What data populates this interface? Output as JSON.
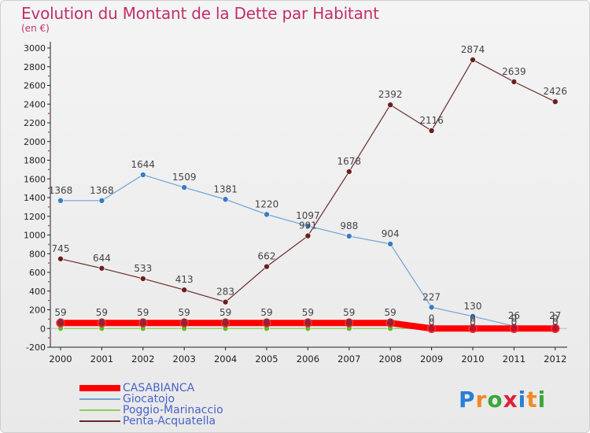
{
  "header": {
    "title": "Evolution du Montant de la Dette par Habitant",
    "subtitle": "(en €)"
  },
  "logo": {
    "text": "Proxiti",
    "letters": [
      "P",
      "r",
      "o",
      "x",
      "i",
      "t",
      "i"
    ],
    "colors": [
      "#2a7fd4",
      "#f08a24",
      "#3aa63a",
      "#e0203a",
      "#2a7fd4",
      "#f08a24",
      "#3aa63a"
    ]
  },
  "chart_data": {
    "type": "line",
    "title": "Evolution du Montant de la Dette par Habitant",
    "subtitle": "(en €)",
    "x": [
      "2000",
      "2001",
      "2002",
      "2003",
      "2004",
      "2005",
      "2006",
      "2007",
      "2008",
      "2009",
      "2010",
      "2011",
      "2012"
    ],
    "ylim": [
      -200,
      3000
    ],
    "yticks": [
      -200,
      0,
      200,
      400,
      600,
      800,
      1000,
      1200,
      1400,
      1600,
      1800,
      2000,
      2200,
      2400,
      2600,
      2800,
      3000
    ],
    "grid": false,
    "legend": "bottom-left",
    "series": [
      {
        "name": "CASABIANCA",
        "color": "#ff0000",
        "marker": "#c0102a",
        "values": [
          59,
          59,
          59,
          59,
          59,
          59,
          59,
          59,
          59,
          0,
          0,
          0,
          0
        ],
        "labels": [
          "59",
          "59",
          "59",
          "59",
          "59",
          "59",
          "59",
          "59",
          "59",
          "0",
          "0",
          "0",
          "0"
        ]
      },
      {
        "name": "Giocatojo",
        "color": "#6fa3d6",
        "marker": "#3a7cc2",
        "values": [
          1368,
          1368,
          1644,
          1509,
          1381,
          1220,
          1097,
          988,
          904,
          227,
          130,
          26,
          27
        ],
        "labels": [
          "1368",
          "1368",
          "1644",
          "1509",
          "1381",
          "1220",
          "1097",
          "988",
          "904",
          "227",
          "130",
          "26",
          "27"
        ]
      },
      {
        "name": "Poggio-Marinaccio",
        "color": "#88d060",
        "marker": "#5cbf2a",
        "values": [
          0,
          0,
          0,
          0,
          0,
          0,
          0,
          0,
          0,
          0,
          0,
          0,
          0
        ],
        "labels": [
          "0",
          "0",
          "0",
          "0",
          "0",
          "0",
          "0",
          "0",
          "0",
          "0",
          "0",
          "0",
          "0"
        ]
      },
      {
        "name": "Penta-Acquatella",
        "color": "#6b2a2a",
        "marker": "#6b1f1f",
        "values": [
          745,
          644,
          533,
          413,
          283,
          662,
          991,
          1678,
          2392,
          2116,
          2874,
          2639,
          2426
        ],
        "labels": [
          "745",
          "644",
          "533",
          "413",
          "283",
          "662",
          "991",
          "1678",
          "2392",
          "2116",
          "2874",
          "2639",
          "2426"
        ]
      }
    ]
  }
}
